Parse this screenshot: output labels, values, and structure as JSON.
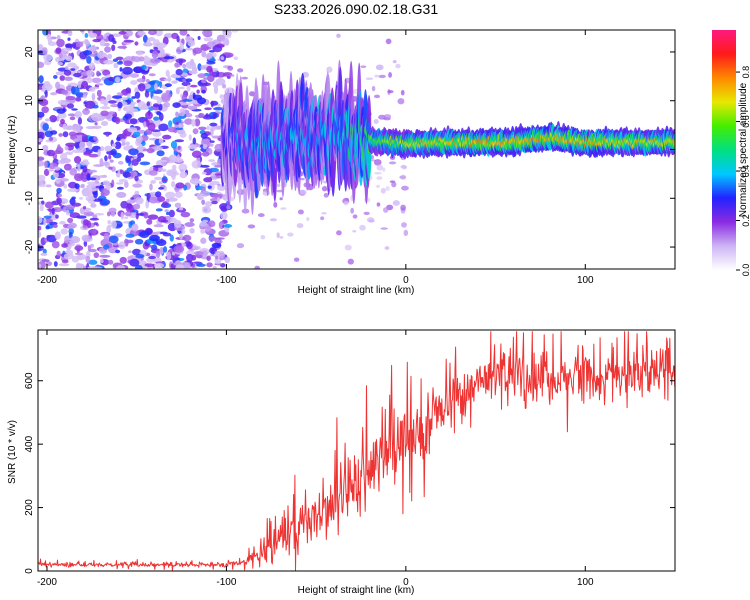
{
  "figure": {
    "title": "S233.2026.090.02.18.G31"
  },
  "chart_data": [
    {
      "type": "heatmap",
      "title": "S233.2026.090.02.18.G31",
      "xlabel": "Height of straight line (km)",
      "ylabel": "Frequency (Hz)",
      "xlim": [
        -205,
        150
      ],
      "ylim": [
        -24.5,
        24.5
      ],
      "xticks": [
        -200,
        -100,
        0,
        100
      ],
      "yticks": [
        -20,
        -10,
        0,
        10,
        20
      ],
      "xtick_labels": [
        "-200",
        "-100",
        "0",
        "100"
      ],
      "ytick_labels": [
        "-20",
        "-10",
        "0",
        "10",
        "20"
      ],
      "colorbar": {
        "label": "Normalized spectral amplitude",
        "range": [
          0,
          0.97
        ],
        "ticks": [
          "0.0",
          "0.2",
          "0.4",
          "0.6",
          "0.8"
        ],
        "colors": [
          "#ffffff",
          "#cdb4f5",
          "#8a2be2",
          "#2222ff",
          "#00c8ff",
          "#00e080",
          "#44ee00",
          "#e8e800",
          "#ff8800",
          "#ff1a1a",
          "#ff1a80"
        ]
      },
      "ridge": {
        "description": "noise below about -100 km, main tone near 2 Hz above about -20 km",
        "x": [
          -100,
          -80,
          -60,
          -40,
          -20,
          0,
          20,
          40,
          60,
          80,
          100,
          120,
          150
        ],
        "freq_hz": [
          2,
          1,
          3,
          3,
          2,
          1,
          1.5,
          1.5,
          1.5,
          2.5,
          1.5,
          1.5,
          1.5
        ],
        "amplitude": [
          0.35,
          0.45,
          0.45,
          0.45,
          0.65,
          0.75,
          0.8,
          0.85,
          0.85,
          0.85,
          0.85,
          0.8,
          0.8
        ]
      }
    },
    {
      "type": "line",
      "xlabel": "Height of straight line (km)",
      "ylabel": "SNR (10 * v/v)",
      "xlim": [
        -205,
        150
      ],
      "ylim": [
        0,
        760
      ],
      "xticks": [
        -200,
        -100,
        0,
        100
      ],
      "yticks": [
        0,
        200,
        400,
        600
      ],
      "xtick_labels": [
        "-200",
        "-100",
        "0",
        "100"
      ],
      "ytick_labels": [
        "0",
        "200",
        "400",
        "600"
      ],
      "color": "#ee3333",
      "series": [
        {
          "name": "SNR",
          "x": [
            -205,
            -100,
            -90,
            -80,
            -70,
            -60,
            -50,
            -40,
            -30,
            -20,
            -10,
            0,
            10,
            20,
            30,
            40,
            50,
            60,
            80,
            100,
            120,
            150
          ],
          "values": [
            20,
            20,
            30,
            60,
            110,
            150,
            180,
            200,
            260,
            320,
            380,
            410,
            450,
            520,
            560,
            590,
            610,
            620,
            600,
            610,
            620,
            630
          ],
          "spread": [
            8,
            8,
            15,
            40,
            70,
            90,
            100,
            120,
            130,
            150,
            150,
            140,
            130,
            120,
            100,
            80,
            80,
            80,
            80,
            80,
            80,
            80
          ]
        }
      ]
    }
  ]
}
